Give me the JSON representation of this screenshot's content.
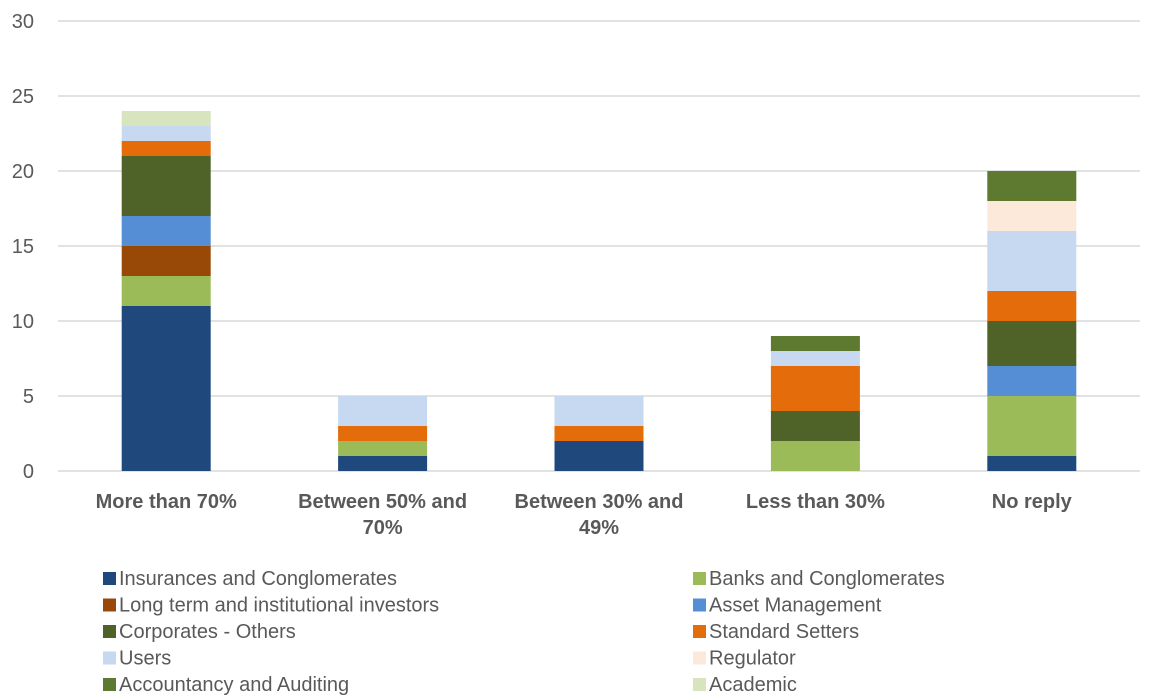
{
  "chart_data": {
    "type": "bar",
    "stacked": true,
    "categories": [
      "More than 70%",
      "Between 50% and 70%",
      "Between 30% and 49%",
      "Less than 30%",
      "No reply"
    ],
    "ylim": [
      0,
      30
    ],
    "yticks": [
      0,
      5,
      10,
      15,
      20,
      25,
      30
    ],
    "grid": true,
    "legend_placement": "bottom",
    "series": [
      {
        "name": "Insurances and Conglomerates",
        "color": "#1f497d",
        "values": [
          11,
          1,
          2,
          0,
          1
        ]
      },
      {
        "name": "Banks and Conglomerates",
        "color": "#9bbb59",
        "values": [
          2,
          1,
          0,
          2,
          4
        ]
      },
      {
        "name": "Long term and institutional investors",
        "color": "#984807",
        "values": [
          2,
          0,
          0,
          0,
          0
        ]
      },
      {
        "name": "Asset Management",
        "color": "#558ed5",
        "values": [
          2,
          0,
          0,
          0,
          2
        ]
      },
      {
        "name": "Corporates - Others",
        "color": "#4f6228",
        "values": [
          4,
          0,
          0,
          2,
          3
        ]
      },
      {
        "name": "Standard Setters",
        "color": "#e46c0a",
        "values": [
          1,
          1,
          1,
          3,
          2
        ]
      },
      {
        "name": "Users",
        "color": "#c6d9f1",
        "values": [
          1,
          2,
          2,
          1,
          4
        ]
      },
      {
        "name": "Regulator",
        "color": "#fde9d9",
        "values": [
          0,
          0,
          0,
          0,
          2
        ]
      },
      {
        "name": "Accountancy and Auditing",
        "color": "#5e7a30",
        "values": [
          0,
          0,
          0,
          1,
          2
        ]
      },
      {
        "name": "Academic",
        "color": "#d7e4bd",
        "values": [
          1,
          0,
          0,
          0,
          0
        ]
      }
    ]
  }
}
